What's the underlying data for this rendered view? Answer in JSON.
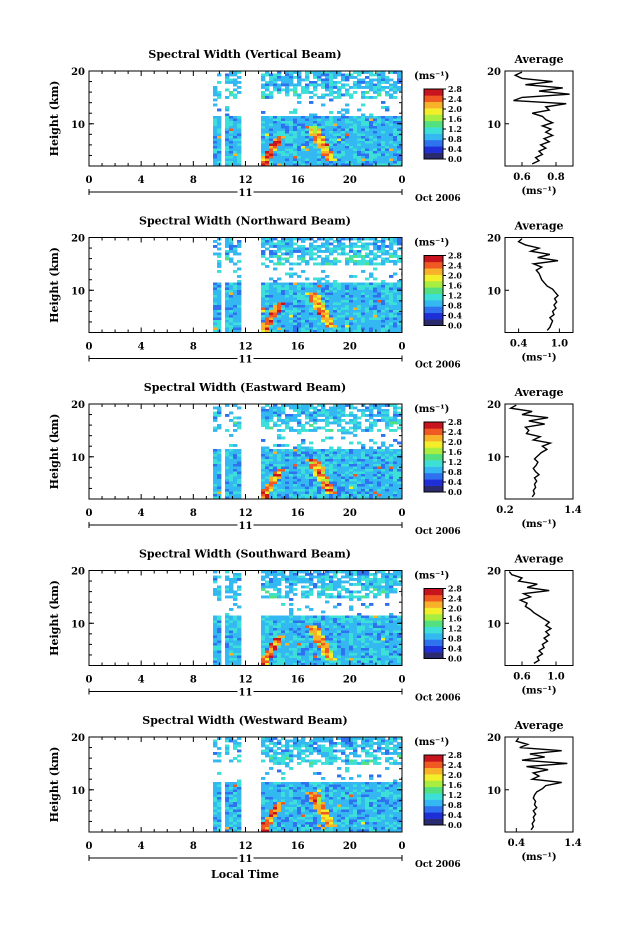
{
  "figure": {
    "date_label": "Oct 2006",
    "day_label": "11",
    "xlabel": "Local Time",
    "ylabel": "Height (km)",
    "colorbar_unit": "(ms⁻¹)",
    "colorbar_ticks": [
      "0.0",
      "0.4",
      "0.8",
      "1.2",
      "1.6",
      "2.0",
      "2.4",
      "2.8"
    ],
    "average_title": "Average",
    "average_xlabel": "(ms⁻¹)"
  },
  "colormap": [
    "#2a2a6e",
    "#1e2fd8",
    "#2f72f0",
    "#33b8f2",
    "#3de0d8",
    "#52e080",
    "#a8ee40",
    "#f2ee2a",
    "#f7b22a",
    "#f05a22",
    "#c8141e"
  ],
  "chart_data": [
    {
      "type": "heatmap",
      "title": "Spectral Width (Vertical Beam)",
      "x_ticks": [
        "0",
        "4",
        "8",
        "12",
        "16",
        "20",
        "0"
      ],
      "x_range_hours": [
        0,
        24
      ],
      "y_ticks": [
        "10",
        "20"
      ],
      "y_range_km": [
        2,
        20
      ],
      "color_range": [
        0.0,
        2.8
      ],
      "data_gaps_hours": [
        [
          0,
          9.6
        ],
        [
          10.1,
          10.5
        ],
        [
          11.8,
          13.1
        ]
      ],
      "average_profile": {
        "x_ticks": [
          "0.6",
          "0.8"
        ],
        "x_range": [
          0.5,
          0.9
        ],
        "height_km": [
          2.4,
          3.0,
          3.6,
          4.2,
          4.8,
          5.4,
          6.0,
          6.6,
          7.2,
          7.8,
          8.4,
          9.0,
          9.6,
          10.2,
          10.8,
          11.4,
          12.0,
          12.6,
          13.2,
          13.8,
          14.4,
          15.0,
          15.6,
          16.2,
          16.8,
          17.4,
          18.0,
          18.6,
          19.2,
          19.8
        ],
        "width": [
          0.66,
          0.7,
          0.68,
          0.72,
          0.7,
          0.74,
          0.71,
          0.76,
          0.73,
          0.78,
          0.74,
          0.77,
          0.72,
          0.78,
          0.74,
          0.72,
          0.66,
          0.76,
          0.74,
          0.86,
          0.55,
          0.6,
          0.88,
          0.7,
          0.84,
          0.62,
          0.78,
          0.6,
          0.56,
          0.6
        ]
      }
    },
    {
      "type": "heatmap",
      "title": "Spectral Width (Northward Beam)",
      "x_ticks": [
        "0",
        "4",
        "8",
        "12",
        "16",
        "20",
        "0"
      ],
      "x_range_hours": [
        0,
        24
      ],
      "y_ticks": [
        "10",
        "20"
      ],
      "y_range_km": [
        2,
        20
      ],
      "color_range": [
        0.0,
        2.8
      ],
      "data_gaps_hours": [
        [
          0,
          9.6
        ],
        [
          10.1,
          10.5
        ],
        [
          11.8,
          13.1
        ]
      ],
      "average_profile": {
        "x_ticks": [
          "0.4",
          "1.0"
        ],
        "x_range": [
          0.2,
          1.2
        ],
        "height_km": [
          2.4,
          3.0,
          3.6,
          4.2,
          4.8,
          5.4,
          6.0,
          6.6,
          7.2,
          7.8,
          8.4,
          9.0,
          9.6,
          10.2,
          10.8,
          11.4,
          12.0,
          12.6,
          13.2,
          13.8,
          14.4,
          15.0,
          15.6,
          16.2,
          16.8,
          17.4,
          18.0,
          18.6,
          19.2,
          19.8
        ],
        "width": [
          0.82,
          0.86,
          0.88,
          0.9,
          0.86,
          0.92,
          0.9,
          0.95,
          0.92,
          0.96,
          0.93,
          0.98,
          0.94,
          0.9,
          0.82,
          0.78,
          0.74,
          0.72,
          0.7,
          0.66,
          0.74,
          0.62,
          0.98,
          0.68,
          0.86,
          0.58,
          0.7,
          0.5,
          0.4,
          0.45
        ]
      }
    },
    {
      "type": "heatmap",
      "title": "Spectral Width (Eastward Beam)",
      "x_ticks": [
        "0",
        "4",
        "8",
        "12",
        "16",
        "20",
        "0"
      ],
      "x_range_hours": [
        0,
        24
      ],
      "y_ticks": [
        "10",
        "20"
      ],
      "y_range_km": [
        2,
        20
      ],
      "color_range": [
        0.0,
        2.8
      ],
      "data_gaps_hours": [
        [
          0,
          9.6
        ],
        [
          10.1,
          10.5
        ],
        [
          11.8,
          13.1
        ]
      ],
      "average_profile": {
        "x_ticks": [
          "0.2",
          "1.4"
        ],
        "x_range": [
          0.2,
          1.4
        ],
        "height_km": [
          2.4,
          3.0,
          3.6,
          4.2,
          4.8,
          5.4,
          6.0,
          6.6,
          7.2,
          7.8,
          8.4,
          9.0,
          9.6,
          10.2,
          10.8,
          11.4,
          12.0,
          12.6,
          13.2,
          13.8,
          14.4,
          15.0,
          15.6,
          16.2,
          16.8,
          17.4,
          18.0,
          18.6,
          19.2,
          19.8
        ],
        "width": [
          0.68,
          0.72,
          0.7,
          0.74,
          0.72,
          0.76,
          0.72,
          0.8,
          0.74,
          0.7,
          0.75,
          0.78,
          0.72,
          0.78,
          0.84,
          0.94,
          0.86,
          1.0,
          0.7,
          0.82,
          0.58,
          0.62,
          0.56,
          0.9,
          0.62,
          0.96,
          0.5,
          0.68,
          0.3,
          0.4
        ]
      }
    },
    {
      "type": "heatmap",
      "title": "Spectral Width (Southward Beam)",
      "x_ticks": [
        "0",
        "4",
        "8",
        "12",
        "16",
        "20",
        "0"
      ],
      "x_range_hours": [
        0,
        24
      ],
      "y_ticks": [
        "10",
        "20"
      ],
      "y_range_km": [
        2,
        20
      ],
      "color_range": [
        0.0,
        2.8
      ],
      "data_gaps_hours": [
        [
          0,
          9.6
        ],
        [
          10.1,
          10.5
        ],
        [
          11.8,
          13.1
        ]
      ],
      "average_profile": {
        "x_ticks": [
          "0.6",
          "1.0"
        ],
        "x_range": [
          0.4,
          1.2
        ],
        "height_km": [
          2.4,
          3.0,
          3.6,
          4.2,
          4.8,
          5.4,
          6.0,
          6.6,
          7.2,
          7.8,
          8.4,
          9.0,
          9.6,
          10.2,
          10.8,
          11.4,
          12.0,
          12.6,
          13.2,
          13.8,
          14.4,
          15.0,
          15.6,
          16.2,
          16.8,
          17.4,
          18.0,
          18.6,
          19.2,
          19.8
        ],
        "width": [
          0.74,
          0.8,
          0.78,
          0.84,
          0.8,
          0.86,
          0.84,
          0.9,
          0.86,
          0.92,
          0.88,
          0.94,
          0.88,
          0.92,
          0.86,
          0.8,
          0.74,
          0.7,
          0.64,
          0.66,
          0.58,
          0.7,
          0.62,
          0.92,
          0.66,
          0.78,
          0.56,
          0.6,
          0.48,
          0.45
        ]
      }
    },
    {
      "type": "heatmap",
      "title": "Spectral Width (Westward Beam)",
      "x_ticks": [
        "0",
        "4",
        "8",
        "12",
        "16",
        "20",
        "0"
      ],
      "x_range_hours": [
        0,
        24
      ],
      "y_ticks": [
        "10",
        "20"
      ],
      "y_range_km": [
        2,
        20
      ],
      "color_range": [
        0.0,
        2.8
      ],
      "data_gaps_hours": [
        [
          0,
          9.6
        ],
        [
          10.1,
          10.5
        ],
        [
          11.8,
          13.1
        ]
      ],
      "average_profile": {
        "x_ticks": [
          "0.4",
          "1.4"
        ],
        "x_range": [
          0.2,
          1.4
        ],
        "height_km": [
          2.4,
          3.0,
          3.6,
          4.2,
          4.8,
          5.4,
          6.0,
          6.6,
          7.2,
          7.8,
          8.4,
          9.0,
          9.6,
          10.2,
          10.8,
          11.4,
          12.0,
          12.6,
          13.2,
          13.8,
          14.4,
          15.0,
          15.6,
          16.2,
          16.8,
          17.4,
          18.0,
          18.6,
          19.2,
          19.8
        ],
        "width": [
          0.66,
          0.7,
          0.68,
          0.72,
          0.7,
          0.74,
          0.7,
          0.76,
          0.72,
          0.74,
          0.7,
          0.72,
          0.76,
          0.86,
          0.92,
          1.2,
          0.68,
          0.8,
          0.7,
          0.96,
          0.58,
          1.3,
          0.5,
          0.9,
          0.64,
          1.2,
          0.46,
          0.6,
          0.4,
          0.44
        ]
      }
    }
  ]
}
